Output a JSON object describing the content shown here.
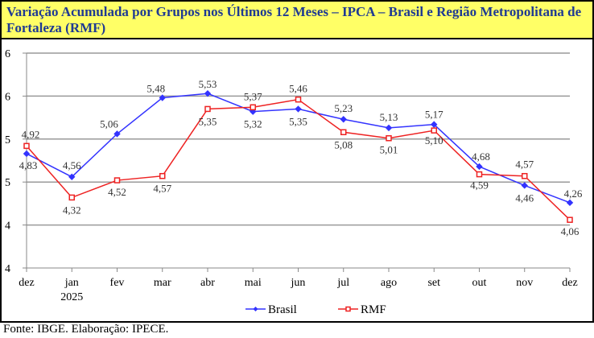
{
  "title": "Variação Acumulada por Grupos nos Últimos 12 Meses – IPCA – Brasil e Região Metropolitana de Fortaleza (RMF)",
  "source": "Fonte: IBGE. Elaboração: IPECE.",
  "colors": {
    "title_bg": "#ffff66",
    "title_text": "#1f3a93",
    "brasil": "#3333ff",
    "rmf": "#ee2222",
    "grid": "#9a9a9a"
  },
  "chart_data": {
    "type": "line",
    "title": "Variação Acumulada por Grupos nos Últimos 12 Meses – IPCA – Brasil e Região Metropolitana de Fortaleza (RMF)",
    "xlabel": "",
    "ylabel": "",
    "categories": [
      "dez",
      "jan",
      "fev",
      "mar",
      "abr",
      "mai",
      "jun",
      "jul",
      "ago",
      "set",
      "out",
      "nov",
      "dez"
    ],
    "category_sublabels": {
      "1": "2025"
    },
    "ylim": [
      3.5,
      6.0
    ],
    "yticks": [
      6.0,
      5.5,
      5.0,
      4.5,
      4.0,
      3.5
    ],
    "ytick_labels": [
      "6",
      "6",
      "5",
      "5",
      "4",
      "4"
    ],
    "grid": true,
    "legend_position": "bottom",
    "series": [
      {
        "name": "Brasil",
        "color": "#3333ff",
        "marker": "diamond",
        "values": [
          4.83,
          4.56,
          5.06,
          5.48,
          5.53,
          5.32,
          5.35,
          5.23,
          5.13,
          5.17,
          4.68,
          4.46,
          4.26
        ],
        "labels": [
          "4,83",
          "4,56",
          "5,06",
          "5,48",
          "5,53",
          "5,32",
          "5,35",
          "5,23",
          "5,13",
          "5,17",
          "4,68",
          "4,46",
          "4,26"
        ]
      },
      {
        "name": "RMF",
        "color": "#ee2222",
        "marker": "square",
        "values": [
          4.92,
          4.32,
          4.52,
          4.57,
          5.35,
          5.37,
          5.46,
          5.08,
          5.01,
          5.1,
          4.59,
          4.57,
          4.06
        ],
        "labels": [
          "4,92",
          "4,32",
          "4,52",
          "4,57",
          "5,35",
          "5,37",
          "5,46",
          "5,08",
          "5,01",
          "5,10",
          "4,59",
          "4,57",
          "4,06"
        ]
      }
    ]
  }
}
